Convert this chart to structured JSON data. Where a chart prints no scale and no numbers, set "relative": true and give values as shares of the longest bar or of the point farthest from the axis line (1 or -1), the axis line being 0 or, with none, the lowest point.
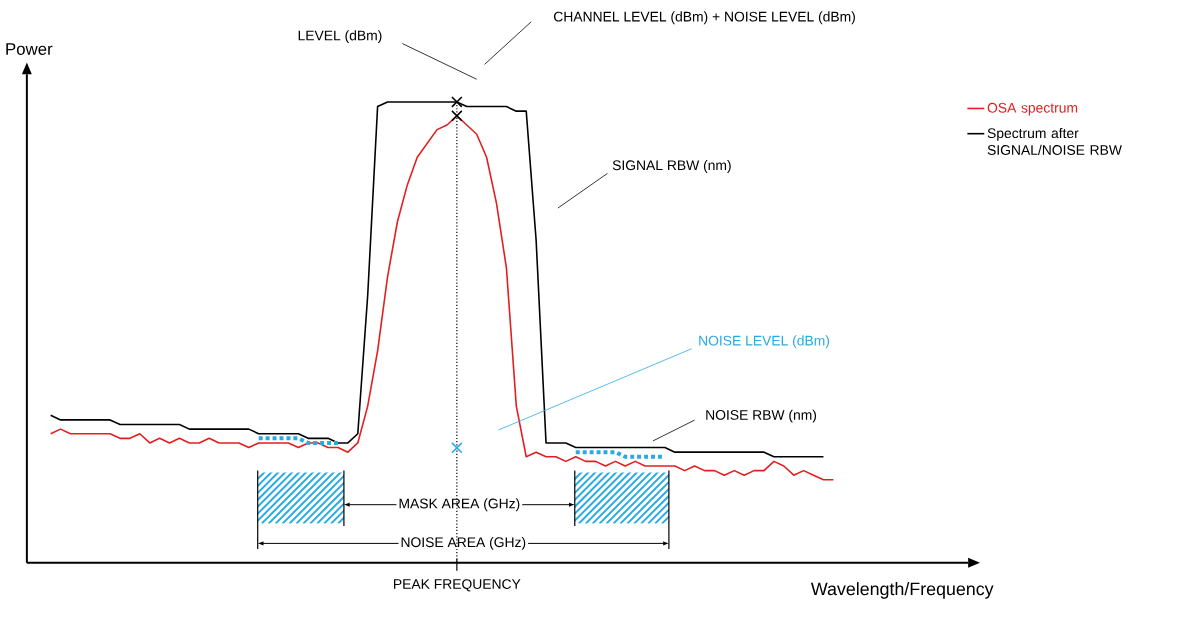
{
  "chart_data": {
    "type": "line",
    "relative": true,
    "xlabel": "Wavelength/Frequency",
    "ylabel": "Power",
    "legend": "top right",
    "categories": [
      null,
      null,
      null,
      null,
      null,
      null,
      null,
      null,
      null,
      null,
      null,
      null,
      null,
      null,
      null,
      null,
      null,
      null,
      null,
      null,
      null,
      null,
      null,
      null,
      null,
      null,
      null,
      null,
      null,
      null,
      null,
      null,
      null,
      null,
      null,
      null,
      null,
      null,
      null,
      null,
      null,
      null,
      null,
      null,
      null,
      null,
      null,
      null,
      null,
      null,
      null,
      null,
      null,
      null,
      null,
      null,
      null,
      null,
      null,
      null,
      null,
      null,
      null,
      null,
      null,
      null,
      null,
      null,
      null,
      null,
      null,
      null,
      null,
      null,
      null,
      null,
      null,
      null,
      null,
      null
    ],
    "series": [
      {
        "name": "OSA spectrum",
        "color": "#e31e1e",
        "values": [
          0.28,
          0.29,
          0.28,
          0.28,
          0.28,
          0.28,
          0.28,
          0.27,
          0.27,
          0.28,
          0.26,
          0.27,
          0.26,
          0.27,
          0.26,
          0.26,
          0.27,
          0.26,
          0.26,
          0.26,
          0.25,
          0.26,
          0.26,
          0.26,
          0.26,
          0.25,
          0.26,
          0.26,
          0.25,
          0.25,
          0.24,
          0.26,
          0.34,
          0.46,
          0.62,
          0.74,
          0.82,
          0.88,
          0.91,
          0.94,
          0.95,
          0.97,
          0.95,
          0.93,
          0.88,
          0.78,
          0.64,
          0.34,
          0.23,
          0.24,
          0.23,
          0.23,
          0.22,
          0.23,
          0.22,
          0.22,
          0.21,
          0.22,
          0.21,
          0.22,
          0.21,
          0.21,
          0.21,
          0.21,
          0.2,
          0.21,
          0.2,
          0.2,
          0.19,
          0.2,
          0.19,
          0.2,
          0.2,
          0.22,
          0.21,
          0.19,
          0.2,
          0.19,
          0.18,
          0.18
        ]
      },
      {
        "name": "Spectrum after SIGNAL/NOISE RBW",
        "color": "#000000",
        "values": [
          0.32,
          0.31,
          0.31,
          0.31,
          0.31,
          0.31,
          0.31,
          0.3,
          0.3,
          0.3,
          0.3,
          0.3,
          0.3,
          0.3,
          0.29,
          0.29,
          0.29,
          0.29,
          0.29,
          0.29,
          0.29,
          0.28,
          0.28,
          0.28,
          0.28,
          0.28,
          0.27,
          0.27,
          0.27,
          0.26,
          0.26,
          0.28,
          0.58,
          0.99,
          1.0,
          1.0,
          1.0,
          1.0,
          1.0,
          1.0,
          1.0,
          1.0,
          0.99,
          0.99,
          0.99,
          0.99,
          0.99,
          0.98,
          0.98,
          0.7,
          0.26,
          0.26,
          0.26,
          0.25,
          0.25,
          0.25,
          0.25,
          0.25,
          0.25,
          0.25,
          0.25,
          0.25,
          0.25,
          0.24,
          0.24,
          0.24,
          0.24,
          0.24,
          0.24,
          0.24,
          0.24,
          0.24,
          0.24,
          0.23,
          0.23,
          0.23,
          0.23,
          0.23,
          0.23,
          null
        ]
      },
      {
        "color": "#29abe2",
        "line_style": "dotted",
        "values": [
          null,
          null,
          null,
          null,
          null,
          null,
          null,
          null,
          null,
          null,
          null,
          null,
          null,
          null,
          null,
          null,
          null,
          null,
          null,
          null,
          null,
          0.27,
          0.27,
          0.27,
          0.27,
          0.27,
          0.26,
          0.26,
          0.26,
          0.26,
          null,
          null,
          null,
          null,
          null,
          null,
          null,
          null,
          null,
          null,
          null,
          null,
          null,
          null,
          null,
          null,
          null,
          null,
          null,
          null,
          null,
          null,
          null,
          0.24,
          0.24,
          0.24,
          0.24,
          0.24,
          0.23,
          0.23,
          0.23,
          0.23,
          0.23,
          null,
          null,
          null,
          null,
          null,
          null,
          null,
          null,
          null,
          null,
          null,
          null,
          null,
          null,
          null,
          null,
          null
        ]
      }
    ],
    "annotations": [
      "LEVEL (dBm)",
      "CHANNEL LEVEL (dBm) + NOISE LEVEL (dBm)",
      "SIGNAL RBW (nm)",
      "NOISE LEVEL (dBm)",
      "NOISE RBW (nm)",
      "MASK AREA (GHz)",
      "NOISE AREA (GHz)",
      "PEAK FREQUENCY"
    ]
  }
}
